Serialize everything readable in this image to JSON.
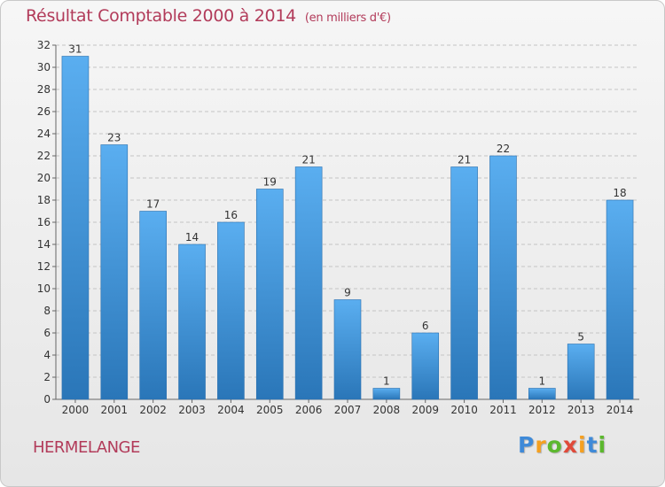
{
  "chart_data": {
    "type": "bar",
    "title": "Résultat Comptable 2000 à 2014",
    "subtitle": "(en milliers d'€)",
    "categories": [
      "2000",
      "2001",
      "2002",
      "2003",
      "2004",
      "2005",
      "2006",
      "2007",
      "2008",
      "2009",
      "2010",
      "2011",
      "2012",
      "2013",
      "2014"
    ],
    "values": [
      31,
      23,
      17,
      14,
      16,
      19,
      21,
      9,
      1,
      6,
      21,
      22,
      1,
      5,
      18
    ],
    "yticks": [
      0,
      2,
      4,
      6,
      8,
      10,
      12,
      14,
      16,
      18,
      20,
      22,
      24,
      26,
      28,
      30,
      32
    ],
    "ylim": [
      0,
      32
    ],
    "xlabel": "",
    "ylabel": "",
    "grid": true,
    "bar_color": "#3c8fd4"
  },
  "commune": "HERMELANGE",
  "brand": {
    "letters": [
      "P",
      "r",
      "o",
      "x",
      "i",
      "t",
      "i"
    ],
    "colors": [
      "#3f8ad8",
      "#f5a020",
      "#5cb82e",
      "#e04a3a",
      "#f5a020",
      "#3f8ad8",
      "#5cb82e"
    ]
  }
}
